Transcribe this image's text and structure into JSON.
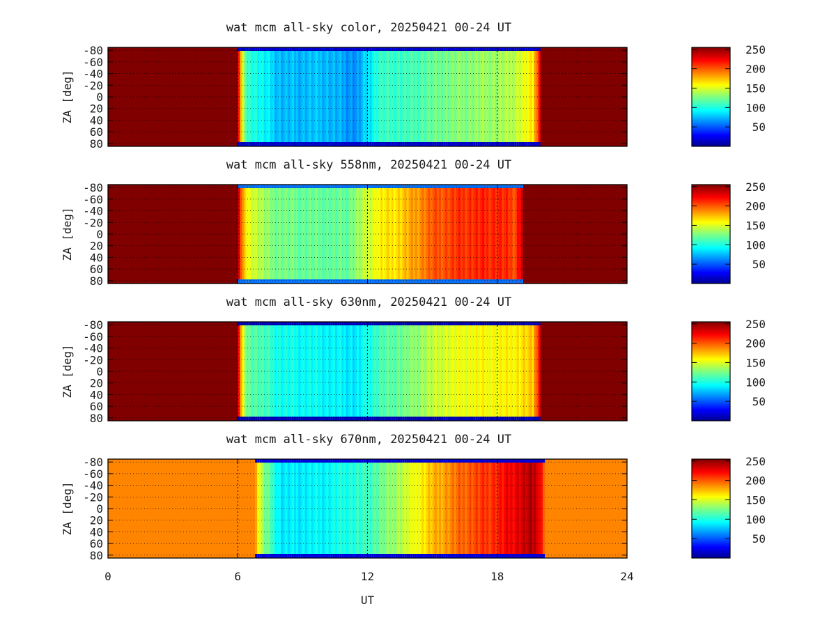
{
  "chart_data": [
    {
      "type": "heatmap",
      "title": "wat mcm all-sky color, 20250421 00-24 UT",
      "xlabel": "",
      "ylabel": "ZA [deg]",
      "xlim": [
        0,
        24
      ],
      "ylim": [
        -85,
        85
      ],
      "x_ticks": [
        0,
        6,
        12,
        18,
        24
      ],
      "y_ticks": [
        -80,
        -60,
        -40,
        -20,
        0,
        20,
        40,
        60,
        80
      ],
      "y_tick_labels": [
        "-80",
        "-60",
        "-40",
        "-20",
        "0",
        "20",
        "40",
        "60",
        "80"
      ],
      "colorbar": {
        "range": [
          0,
          255
        ],
        "ticks": [
          50,
          100,
          150,
          200,
          250
        ]
      },
      "profile": {
        "day_value": 255,
        "night_start": 6.0,
        "night_end": 20.0,
        "night_levels": [
          {
            "x": 6.0,
            "v": 120
          },
          {
            "x": 8.0,
            "v": 78
          },
          {
            "x": 10.0,
            "v": 80
          },
          {
            "x": 11.5,
            "v": 68
          },
          {
            "x": 12.5,
            "v": 108
          },
          {
            "x": 14.0,
            "v": 112
          },
          {
            "x": 15.5,
            "v": 125
          },
          {
            "x": 17.0,
            "v": 132
          },
          {
            "x": 18.5,
            "v": 138
          },
          {
            "x": 19.5,
            "v": 160
          }
        ],
        "edge_value": 20
      },
      "grid": true,
      "grid_rows": 1
    },
    {
      "type": "heatmap",
      "title": "wat mcm all-sky 558nm, 20250421 00-24 UT",
      "xlabel": "",
      "ylabel": "ZA [deg]",
      "xlim": [
        0,
        24
      ],
      "ylim": [
        -85,
        85
      ],
      "x_ticks": [
        0,
        6,
        12,
        18,
        24
      ],
      "y_ticks": [
        -80,
        -60,
        -40,
        -20,
        0,
        20,
        40,
        60,
        80
      ],
      "y_tick_labels": [
        "-80",
        "-60",
        "-40",
        "-20",
        "0",
        "20",
        "40",
        "60",
        "80"
      ],
      "colorbar": {
        "range": [
          0,
          255
        ],
        "ticks": [
          50,
          100,
          150,
          200,
          250
        ]
      },
      "profile": {
        "day_value": 255,
        "night_start": 6.0,
        "night_end": 19.2,
        "night_levels": [
          {
            "x": 6.0,
            "v": 170
          },
          {
            "x": 7.5,
            "v": 128
          },
          {
            "x": 9.0,
            "v": 122
          },
          {
            "x": 11.0,
            "v": 120
          },
          {
            "x": 12.5,
            "v": 160
          },
          {
            "x": 13.5,
            "v": 170
          },
          {
            "x": 15.0,
            "v": 200
          },
          {
            "x": 16.5,
            "v": 212
          },
          {
            "x": 18.0,
            "v": 215
          },
          {
            "x": 19.0,
            "v": 205
          }
        ],
        "edge_value": 60
      },
      "grid": true,
      "grid_rows": 1
    },
    {
      "type": "heatmap",
      "title": "wat mcm all-sky 630nm, 20250421 00-24 UT",
      "xlabel": "",
      "ylabel": "ZA [deg]",
      "xlim": [
        0,
        24
      ],
      "ylim": [
        -85,
        85
      ],
      "x_ticks": [
        0,
        6,
        12,
        18,
        24
      ],
      "y_ticks": [
        -80,
        -60,
        -40,
        -20,
        0,
        20,
        40,
        60,
        80
      ],
      "y_tick_labels": [
        "-80",
        "-60",
        "-40",
        "-20",
        "0",
        "20",
        "40",
        "60",
        "80"
      ],
      "colorbar": {
        "range": [
          0,
          255
        ],
        "ticks": [
          50,
          100,
          150,
          200,
          250
        ]
      },
      "profile": {
        "day_value": 255,
        "night_start": 6.0,
        "night_end": 20.0,
        "night_levels": [
          {
            "x": 6.0,
            "v": 130
          },
          {
            "x": 8.0,
            "v": 100
          },
          {
            "x": 10.0,
            "v": 96
          },
          {
            "x": 11.5,
            "v": 90
          },
          {
            "x": 12.5,
            "v": 112
          },
          {
            "x": 14.0,
            "v": 128
          },
          {
            "x": 15.5,
            "v": 150
          },
          {
            "x": 17.0,
            "v": 158
          },
          {
            "x": 18.5,
            "v": 160
          },
          {
            "x": 19.5,
            "v": 170
          }
        ],
        "edge_value": 15
      },
      "grid": true,
      "grid_rows": 1
    },
    {
      "type": "heatmap",
      "title": "wat mcm all-sky 670nm, 20250421 00-24 UT",
      "xlabel": "UT",
      "ylabel": "ZA [deg]",
      "xlim": [
        0,
        24
      ],
      "ylim": [
        -85,
        85
      ],
      "x_ticks": [
        0,
        6,
        12,
        18,
        24
      ],
      "x_tick_labels": [
        "0",
        "6",
        "12",
        "18",
        "24"
      ],
      "y_ticks": [
        -80,
        -60,
        -40,
        -20,
        0,
        20,
        40,
        60,
        80
      ],
      "y_tick_labels": [
        "-80",
        "-60",
        "-40",
        "-20",
        "0",
        "20",
        "40",
        "60",
        "80"
      ],
      "colorbar": {
        "range": [
          0,
          255
        ],
        "ticks": [
          50,
          100,
          150,
          200,
          250
        ]
      },
      "profile": {
        "day_value": 190,
        "night_start": 6.8,
        "night_end": 20.2,
        "night_levels": [
          {
            "x": 6.8,
            "v": 150
          },
          {
            "x": 8.0,
            "v": 90
          },
          {
            "x": 10.0,
            "v": 95
          },
          {
            "x": 12.0,
            "v": 110
          },
          {
            "x": 13.5,
            "v": 140
          },
          {
            "x": 15.0,
            "v": 175
          },
          {
            "x": 16.5,
            "v": 200
          },
          {
            "x": 18.0,
            "v": 215
          },
          {
            "x": 19.5,
            "v": 240
          },
          {
            "x": 20.2,
            "v": 235
          }
        ],
        "edge_value": 25
      },
      "grid": true,
      "grid_rows": 1
    }
  ]
}
